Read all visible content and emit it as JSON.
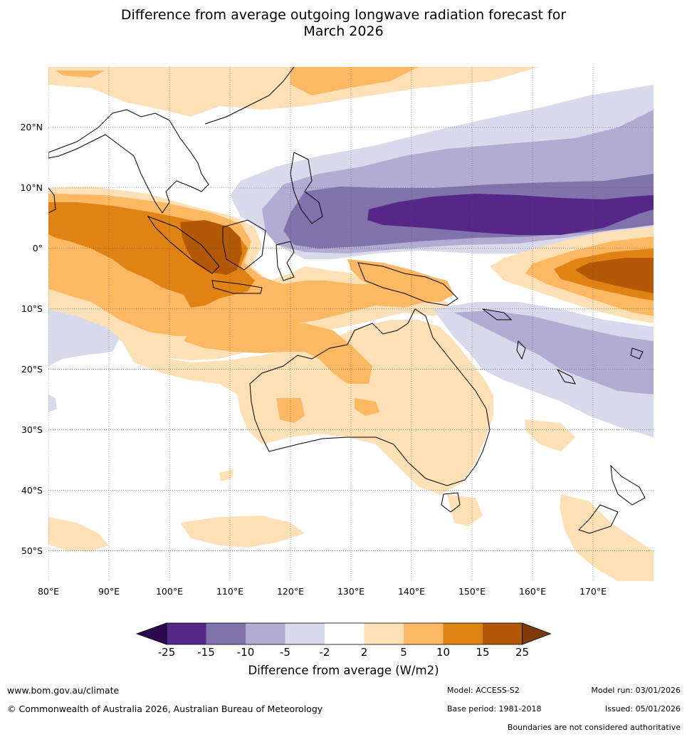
{
  "title": {
    "line1": "Difference from average outgoing longwave radiation forecast for",
    "line2": "March 2026"
  },
  "colors": {
    "bin_minus_inf": "#2d0a4e",
    "bin_m25_m15": "#542788",
    "bin_m15_m10": "#8073ac",
    "bin_m10_m5": "#b2abd2",
    "bin_m5_m2": "#d8daeb",
    "bin_m2_2": "#ffffff",
    "bin_2_5": "#fee0b6",
    "bin_5_10": "#fdb863",
    "bin_10_15": "#e08214",
    "bin_15_25": "#b35806",
    "bin_plus_inf": "#7f3b08"
  },
  "chart_data": {
    "type": "heatmap",
    "title": "Difference from average outgoing longwave radiation forecast for March 2026",
    "region": "Australia, Indian Ocean and western Pacific",
    "lon_range": [
      80,
      180
    ],
    "lat_range": [
      -55,
      30
    ],
    "lon_ticks": [
      "80°E",
      "90°E",
      "100°E",
      "110°E",
      "120°E",
      "130°E",
      "140°E",
      "150°E",
      "160°E",
      "170°E"
    ],
    "lat_ticks": [
      "20°N",
      "10°N",
      "0°",
      "10°S",
      "20°S",
      "30°S",
      "40°S",
      "50°S"
    ],
    "lon_tick_values": [
      80,
      90,
      100,
      110,
      120,
      130,
      140,
      150,
      160,
      170
    ],
    "lat_tick_values": [
      20,
      10,
      0,
      -10,
      -20,
      -30,
      -40,
      -50
    ],
    "colorbar": {
      "label": "Difference from average (W/m2)",
      "ticks": [
        "-25",
        "-15",
        "-10",
        "-5",
        "-2",
        "2",
        "5",
        "10",
        "15",
        "25"
      ],
      "boundaries": [
        -25,
        -15,
        -10,
        -5,
        -2,
        2,
        5,
        10,
        15,
        25
      ],
      "extend": "both"
    },
    "regions": [
      {
        "name": "western Pacific north of equator",
        "lon": [
          150,
          180
        ],
        "lat": [
          3,
          8
        ],
        "value_range": "-25 to -15"
      },
      {
        "name": "Philippines and South China Sea",
        "lon": [
          125,
          155
        ],
        "lat": [
          3,
          15
        ],
        "value_range": "-15 to -10"
      },
      {
        "name": "Maritime Continent north",
        "lon": [
          115,
          150
        ],
        "lat": [
          -2,
          20
        ],
        "value_range": "-10 to -5"
      },
      {
        "name": "subtropical north Pacific band",
        "lon": [
          130,
          180
        ],
        "lat": [
          10,
          27
        ],
        "value_range": "-5 to -2"
      },
      {
        "name": "Sumatra and Java",
        "lon": [
          100,
          115
        ],
        "lat": [
          -5,
          5
        ],
        "value_range": "15 to 25"
      },
      {
        "name": "eastern Indian Ocean",
        "lon": [
          80,
          120
        ],
        "lat": [
          -10,
          10
        ],
        "value_range": "10 to 15"
      },
      {
        "name": "central Pacific near equator",
        "lon": [
          160,
          180
        ],
        "lat": [
          -8,
          0
        ],
        "value_range": "15 to 25"
      },
      {
        "name": "New Guinea and Arafura Sea",
        "lon": [
          125,
          150
        ],
        "lat": [
          -10,
          -2
        ],
        "value_range": "5 to 10"
      },
      {
        "name": "northern and western Australia",
        "lon": [
          110,
          135
        ],
        "lat": [
          -25,
          -10
        ],
        "value_range": "5 to 10"
      },
      {
        "name": "interior Australia",
        "lon": [
          115,
          153
        ],
        "lat": [
          -38,
          -15
        ],
        "value_range": "2 to 5"
      },
      {
        "name": "Coral Sea",
        "lon": [
          150,
          180
        ],
        "lat": [
          -30,
          -10
        ],
        "value_range": "-5 to -2"
      },
      {
        "name": "southern Indian Ocean",
        "lon": [
          80,
          120
        ],
        "lat": [
          -52,
          -44
        ],
        "value_range": "2 to 5"
      },
      {
        "name": "New Zealand and Tasman",
        "lon": [
          165,
          180
        ],
        "lat": [
          -55,
          -42
        ],
        "value_range": "2 to 5"
      }
    ]
  },
  "footer": {
    "website": "www.bom.gov.au/climate",
    "copyright": "© Commonwealth of Australia 2026, Australian Bureau of Meteorology",
    "model": "Model: ACCESS-S2",
    "base_period": "Base period: 1981-2018",
    "model_run": "Model run: 03/01/2026",
    "issued": "Issued: 05/01/2026",
    "disclaimer": "Boundaries are not considered authoritative"
  }
}
